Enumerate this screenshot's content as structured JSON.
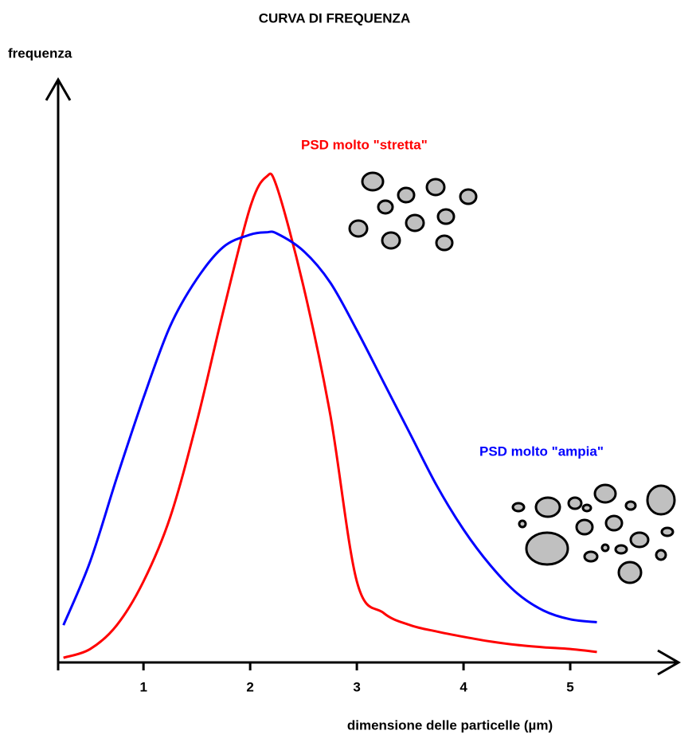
{
  "chart_data": {
    "type": "line",
    "title": "CURVA DI FREQUENZA",
    "y_label": "frequenza",
    "x_label": "dimensione delle particelle  (µm)",
    "x": [
      0.25,
      0.5,
      0.75,
      1,
      1.25,
      1.5,
      1.75,
      2,
      2.15,
      2.25,
      2.5,
      2.75,
      3,
      3.25,
      3.5,
      3.75,
      4,
      4.25,
      4.5,
      4.75,
      5,
      5.25
    ],
    "series": [
      {
        "name": "PSD molto \"stretta\"",
        "color": "#ff0000",
        "values": [
          0.8,
          2.3,
          6.4,
          13.9,
          24.9,
          41.3,
          60.4,
          78.1,
          83.3,
          81.6,
          64.5,
          42.6,
          13.9,
          8.5,
          6.4,
          5.3,
          4.4,
          3.6,
          3.0,
          2.6,
          2.3,
          1.8
        ]
      },
      {
        "name": "PSD molto \"ampia\"",
        "color": "#0000ff",
        "values": [
          6.4,
          17.3,
          31.7,
          45.4,
          57.7,
          65.8,
          71.3,
          73.4,
          73.8,
          73.6,
          70.6,
          65.2,
          57.0,
          48.1,
          39.2,
          30.3,
          22.8,
          16.7,
          11.9,
          8.9,
          7.4,
          6.9
        ]
      }
    ],
    "xlim": [
      0.2,
      6.0
    ],
    "ylim": [
      0,
      100
    ],
    "xticks": [
      1,
      2,
      3,
      4,
      5
    ]
  }
}
